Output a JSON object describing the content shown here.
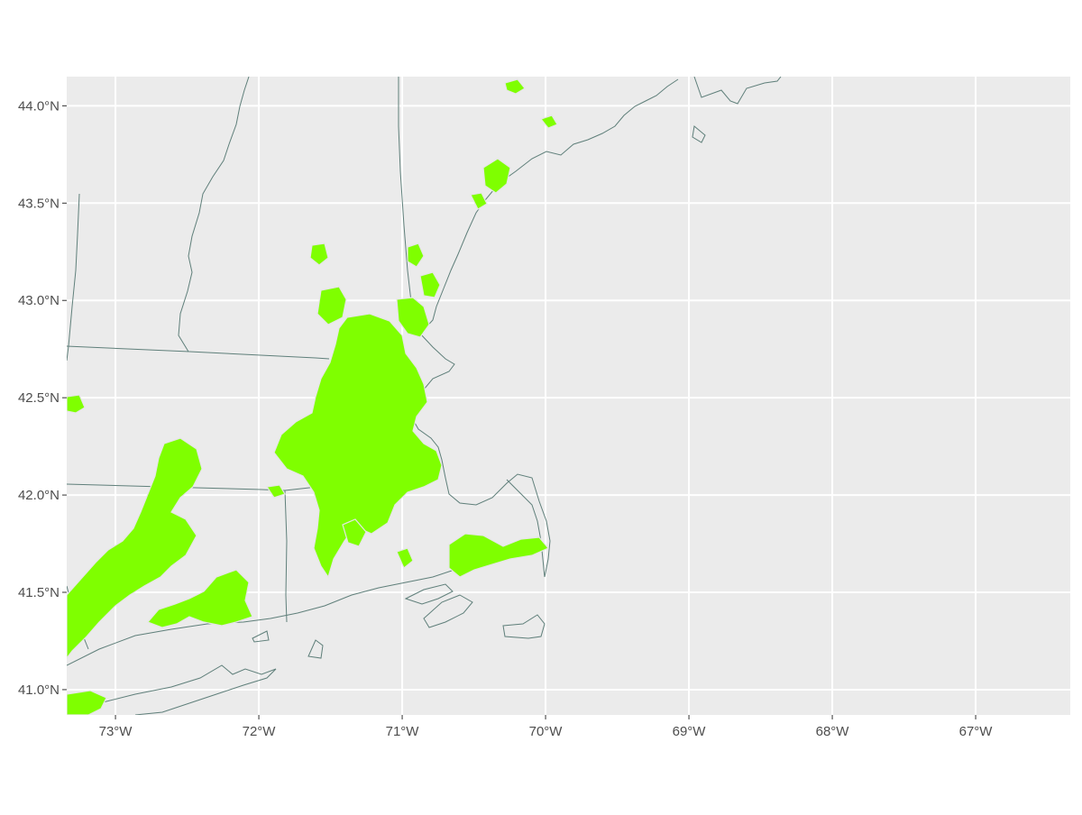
{
  "map": {
    "panel_background": "#ebebeb",
    "grid_color": "#ffffff",
    "boundary_color": "#5f7f7a",
    "urban_fill": "#7fff00",
    "lon_ticks": [
      {
        "value": -73,
        "label": "73°W"
      },
      {
        "value": -72,
        "label": "72°W"
      },
      {
        "value": -71,
        "label": "71°W"
      },
      {
        "value": -70,
        "label": "70°W"
      },
      {
        "value": -69,
        "label": "69°W"
      },
      {
        "value": -68,
        "label": "68°W"
      },
      {
        "value": -67,
        "label": "67°W"
      }
    ],
    "lat_ticks": [
      {
        "value": 44.0,
        "label": "44.0°N"
      },
      {
        "value": 43.5,
        "label": "43.5°N"
      },
      {
        "value": 43.0,
        "label": "43.0°N"
      },
      {
        "value": 42.5,
        "label": "42.5°N"
      },
      {
        "value": 42.0,
        "label": "42.0°N"
      },
      {
        "value": 41.5,
        "label": "41.5°N"
      },
      {
        "value": 41.0,
        "label": "41.0°N"
      }
    ],
    "lon_range": [
      -73.34,
      -66.34
    ],
    "lat_range": [
      40.87,
      44.15
    ]
  }
}
